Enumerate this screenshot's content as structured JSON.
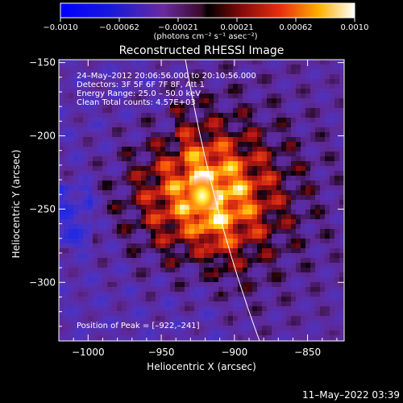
{
  "colorbar": {
    "ticks": [
      "-0.0010",
      "-0.00062",
      "-0.00021",
      "0.00021",
      "0.00062",
      "0.0010"
    ],
    "unit_label": "(photons cm⁻² s⁻¹ asec⁻²)"
  },
  "chart_data": {
    "type": "heatmap",
    "title": "Reconstructed RHESSI Image",
    "xlabel": "Heliocentric X (arcsec)",
    "ylabel": "Heliocentric Y (arcsec)",
    "xlim": [
      -1020,
      -825
    ],
    "ylim": [
      -340,
      -148
    ],
    "xticks": [
      -1000,
      -950,
      -900,
      -850
    ],
    "yticks": [
      -150,
      -200,
      -250,
      -300
    ],
    "color_range": [
      -0.001,
      0.001
    ],
    "colormap": "rainbow_red_yellow_white",
    "peak_position": [
      -922,
      -241
    ],
    "info_lines": [
      "24–May–2012 20:06:56.000 to 20:10:56.000",
      "Detectors: 3F 5F 6F 7F 8F, Att 1",
      "Energy Range: 25.0 – 50.0 keV",
      "Clean     Total counts: 4.57E+03"
    ],
    "peak_label": "Position of Peak = [–922,–241]"
  },
  "timestamp": "11–May–2022 03:39"
}
